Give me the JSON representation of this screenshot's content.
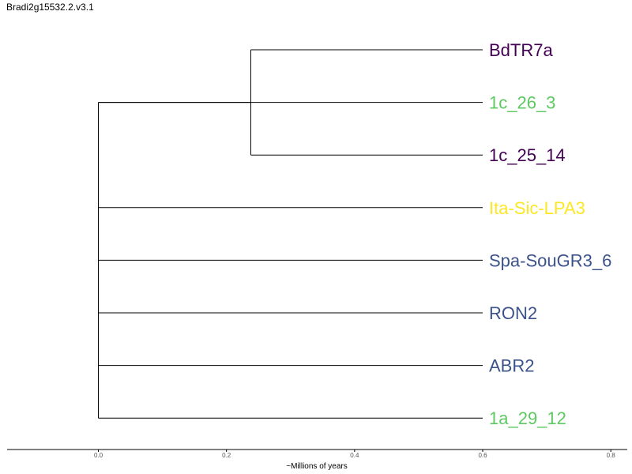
{
  "title": "Bradi2g15532.2.v3.1",
  "chart_data": {
    "type": "dendrogram",
    "xlabel": "~Millions of years",
    "xticks": [
      0.0,
      0.2,
      0.4,
      0.6,
      0.8
    ],
    "xtick_labels": [
      "0.0",
      "0.2",
      "0.4",
      "0.6",
      "0.8"
    ],
    "xlim": [
      -0.143,
      0.825
    ],
    "leaves": [
      {
        "name": "BdTR7a",
        "color": "#440154"
      },
      {
        "name": "1c_26_3",
        "color": "#5ec962"
      },
      {
        "name": "1c_25_14",
        "color": "#440154"
      },
      {
        "name": "Ita-Sic-LPA3",
        "color": "#fde725"
      },
      {
        "name": "Spa-SouGR3_6",
        "color": "#3b528b"
      },
      {
        "name": "RON2",
        "color": "#3b528b"
      },
      {
        "name": "ABR2",
        "color": "#3b528b"
      },
      {
        "name": "1a_29_12",
        "color": "#5ec962"
      }
    ],
    "tips_at": 0.6,
    "inner_node_at": 0.238,
    "inner_node_children": [
      0,
      2
    ],
    "root_at": 0.0
  }
}
